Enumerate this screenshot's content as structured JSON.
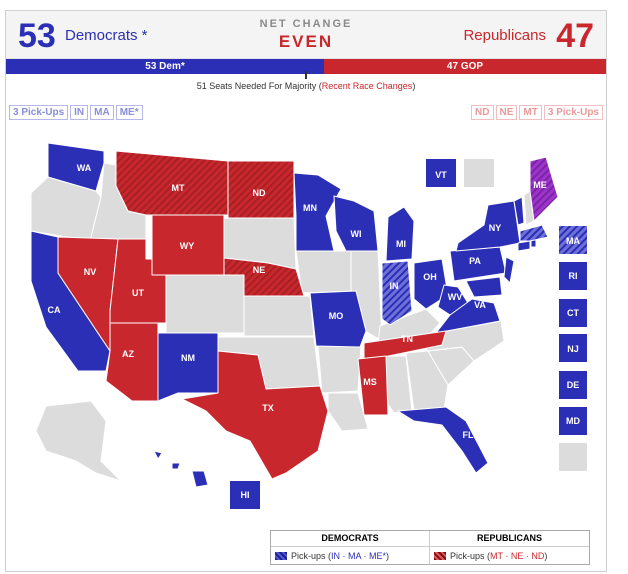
{
  "header": {
    "dem_count": "53",
    "dem_label": "Democrats *",
    "net_change_label": "NET CHANGE",
    "net_change_value": "EVEN",
    "rep_label": "Republicans",
    "rep_count": "47"
  },
  "balance_bar": {
    "dem_text": "53 Dem*",
    "rep_text": "47 GOP",
    "dem_seats": 53,
    "rep_seats": 47
  },
  "majority": {
    "text": "51 Seats Needed For Majority (",
    "link": "Recent Race Changes",
    "close": ")"
  },
  "pickups_left": [
    "3 Pick-Ups",
    "IN",
    "MA",
    "ME*"
  ],
  "pickups_right": [
    "ND",
    "NE",
    "MT",
    "3 Pick-Ups"
  ],
  "colors": {
    "dem": "#2b2fb5",
    "rep": "#c8282d",
    "independent": "#9b36c8",
    "no_race": "#dcdcdc"
  },
  "map": {
    "states": {
      "WA": "WA",
      "MT": "MT",
      "ND": "ND",
      "MN": "MN",
      "WI": "WI",
      "MI": "MI",
      "NY": "NY",
      "VT": "VT",
      "ME": "ME",
      "MA": "MA",
      "RI": "RI",
      "CT": "CT",
      "NJ": "NJ",
      "DE": "DE",
      "MD": "MD",
      "CA": "CA",
      "NV": "NV",
      "UT": "UT",
      "WY": "WY",
      "NE": "NE",
      "IN": "IN",
      "OH": "OH",
      "PA": "PA",
      "WV": "WV",
      "VA": "VA",
      "MO": "MO",
      "TN": "TN",
      "AZ": "AZ",
      "NM": "NM",
      "TX": "TX",
      "MS": "MS",
      "FL": "FL",
      "HI": "HI"
    }
  },
  "legend": {
    "dem_header": "DEMOCRATS",
    "rep_header": "REPUBLICANS",
    "dem_prefix": "Pick-ups (",
    "dem_states": "IN · MA · ME*",
    "dem_suffix": ")",
    "rep_prefix": "Pick-ups (",
    "rep_states": "MT · NE · ND",
    "rep_suffix": ")"
  }
}
